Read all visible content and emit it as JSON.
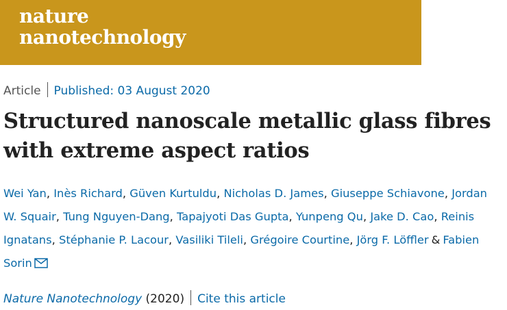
{
  "header": {
    "brand_line1": "nature",
    "brand_line2": "nanotechnology"
  },
  "article": {
    "type": "Article",
    "published": "Published: 03 August 2020",
    "title": "Structured nanoscale metallic glass fibres with extreme aspect ratios",
    "authors": [
      {
        "name": "Wei Yan",
        "separator": ","
      },
      {
        "name": "Inès Richard",
        "separator": ","
      },
      {
        "name": "Güven Kurtuldu",
        "separator": ","
      },
      {
        "name": "Nicholas D. James",
        "separator": ","
      },
      {
        "name": "Giuseppe Schiavone",
        "separator": ","
      },
      {
        "name": "Jordan W. Squair",
        "separator": ","
      },
      {
        "name": "Tung Nguyen-Dang",
        "separator": ","
      },
      {
        "name": "Tapajyoti Das Gupta",
        "separator": ","
      },
      {
        "name": "Yunpeng Qu",
        "separator": ","
      },
      {
        "name": "Jake D. Cao",
        "separator": ","
      },
      {
        "name": "Reinis Ignatans",
        "separator": ","
      },
      {
        "name": "Stéphanie P. Lacour",
        "separator": ","
      },
      {
        "name": "Vasiliki Tileli",
        "separator": ","
      },
      {
        "name": "Grégoire Courtine",
        "separator": ","
      },
      {
        "name": "Jörg F. Löffler",
        "separator": "&"
      },
      {
        "name": "Fabien Sorin"
      }
    ],
    "journal": "Nature Nanotechnology",
    "year": "(2020)",
    "cite": "Cite this article"
  }
}
